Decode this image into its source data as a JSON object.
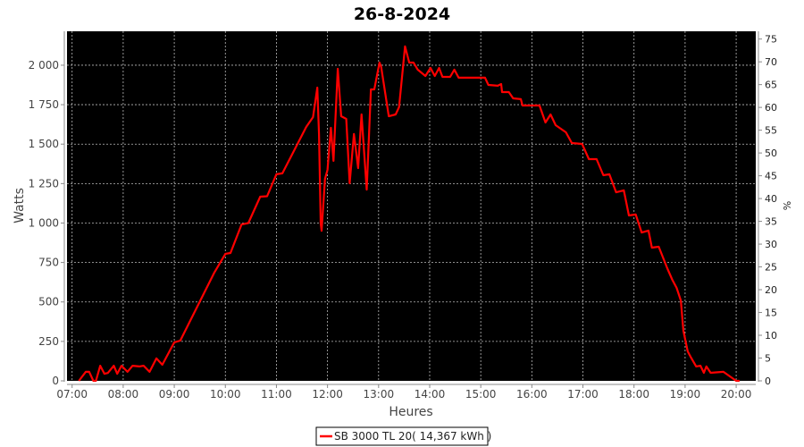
{
  "chart_data": {
    "type": "line",
    "title": "26-8-2024",
    "xlabel": "Heures",
    "ylabel": "Watts",
    "ylabel_right": "%",
    "xlim": [
      "06:54",
      "20:23"
    ],
    "ylim": [
      0,
      2215
    ],
    "ylim_right": [
      0,
      76.7
    ],
    "grid": true,
    "background": "#000000",
    "legend_placement": "bottom",
    "x_ticks": [
      "07:00",
      "08:00",
      "09:00",
      "10:00",
      "11:00",
      "12:00",
      "13:00",
      "14:00",
      "15:00",
      "16:00",
      "17:00",
      "18:00",
      "19:00",
      "20:00"
    ],
    "y_ticks": [
      0,
      250,
      500,
      750,
      1000,
      1250,
      1500,
      1750,
      2000
    ],
    "y_tick_labels": [
      "0",
      "250",
      "500",
      "750",
      "1 000",
      "1 250",
      "1 500",
      "1 750",
      "2 000"
    ],
    "y_right_ticks": [
      "0",
      "5",
      "10",
      "15",
      "20",
      "25",
      "30",
      "35",
      "40",
      "45",
      "50",
      "55",
      "60",
      "65",
      "70",
      "75"
    ],
    "series": [
      {
        "name": "SB 3000 TL 20( 14,367 kWh )",
        "color": "#ff0000",
        "points": [
          [
            "07:08",
            0
          ],
          [
            "07:16",
            57
          ],
          [
            "07:20",
            57
          ],
          [
            "07:25",
            0
          ],
          [
            "07:28",
            0
          ],
          [
            "07:33",
            96
          ],
          [
            "07:38",
            45
          ],
          [
            "07:42",
            50
          ],
          [
            "07:49",
            96
          ],
          [
            "07:53",
            45
          ],
          [
            "07:58",
            96
          ],
          [
            "08:05",
            57
          ],
          [
            "08:11",
            96
          ],
          [
            "08:19",
            91
          ],
          [
            "08:24",
            96
          ],
          [
            "08:31",
            57
          ],
          [
            "08:39",
            142
          ],
          [
            "08:46",
            102
          ],
          [
            "09:00",
            244
          ],
          [
            "09:07",
            255
          ],
          [
            "09:47",
            686
          ],
          [
            "10:00",
            805
          ],
          [
            "10:06",
            810
          ],
          [
            "10:19",
            991
          ],
          [
            "10:27",
            1000
          ],
          [
            "10:41",
            1167
          ],
          [
            "10:49",
            1170
          ],
          [
            "11:00",
            1309
          ],
          [
            "11:07",
            1315
          ],
          [
            "11:35",
            1609
          ],
          [
            "11:43",
            1671
          ],
          [
            "11:48",
            1858
          ],
          [
            "11:50",
            1563
          ],
          [
            "11:52",
            997
          ],
          [
            "11:53",
            951
          ],
          [
            "11:57",
            1280
          ],
          [
            "12:00",
            1337
          ],
          [
            "12:04",
            1603
          ],
          [
            "12:07",
            1394
          ],
          [
            "12:12",
            1977
          ],
          [
            "12:16",
            1677
          ],
          [
            "12:22",
            1660
          ],
          [
            "12:26",
            1252
          ],
          [
            "12:31",
            1564
          ],
          [
            "12:36",
            1348
          ],
          [
            "12:40",
            1688
          ],
          [
            "12:46",
            1212
          ],
          [
            "12:51",
            1847
          ],
          [
            "12:55",
            1847
          ],
          [
            "13:01",
            2017
          ],
          [
            "13:03",
            1989
          ],
          [
            "13:12",
            1677
          ],
          [
            "13:20",
            1688
          ],
          [
            "13:24",
            1734
          ],
          [
            "13:31",
            2119
          ],
          [
            "13:36",
            2017
          ],
          [
            "13:41",
            2017
          ],
          [
            "13:46",
            1972
          ],
          [
            "13:55",
            1932
          ],
          [
            "14:01",
            1983
          ],
          [
            "14:06",
            1932
          ],
          [
            "14:11",
            1983
          ],
          [
            "14:15",
            1926
          ],
          [
            "14:24",
            1926
          ],
          [
            "14:29",
            1972
          ],
          [
            "14:34",
            1921
          ],
          [
            "14:58",
            1921
          ],
          [
            "15:05",
            1921
          ],
          [
            "15:09",
            1875
          ],
          [
            "15:20",
            1870
          ],
          [
            "15:24",
            1881
          ],
          [
            "15:25",
            1830
          ],
          [
            "15:33",
            1830
          ],
          [
            "15:38",
            1790
          ],
          [
            "15:47",
            1785
          ],
          [
            "15:49",
            1745
          ],
          [
            "16:09",
            1745
          ],
          [
            "16:16",
            1637
          ],
          [
            "16:22",
            1688
          ],
          [
            "16:28",
            1620
          ],
          [
            "16:40",
            1575
          ],
          [
            "16:47",
            1507
          ],
          [
            "16:59",
            1501
          ],
          [
            "17:07",
            1405
          ],
          [
            "17:16",
            1405
          ],
          [
            "17:24",
            1303
          ],
          [
            "17:31",
            1309
          ],
          [
            "17:39",
            1195
          ],
          [
            "17:48",
            1207
          ],
          [
            "17:54",
            1048
          ],
          [
            "18:02",
            1054
          ],
          [
            "18:09",
            940
          ],
          [
            "18:17",
            952
          ],
          [
            "18:21",
            844
          ],
          [
            "18:29",
            850
          ],
          [
            "18:39",
            714
          ],
          [
            "18:45",
            640
          ],
          [
            "18:50",
            589
          ],
          [
            "18:55",
            510
          ],
          [
            "18:58",
            317
          ],
          [
            "19:03",
            187
          ],
          [
            "19:07",
            147
          ],
          [
            "19:13",
            91
          ],
          [
            "19:18",
            96
          ],
          [
            "19:22",
            51
          ],
          [
            "19:25",
            91
          ],
          [
            "19:30",
            51
          ],
          [
            "19:45",
            57
          ],
          [
            "20:00",
            0
          ],
          [
            "20:04",
            0
          ]
        ]
      }
    ]
  }
}
